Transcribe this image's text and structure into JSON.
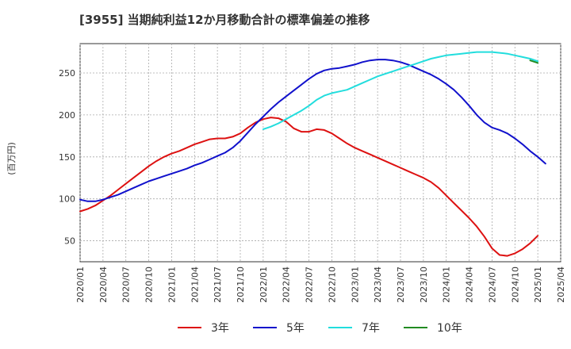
{
  "chart_data": {
    "type": "line",
    "title": "[3955]  当期純利益12か月移動合計の標準偏差の推移",
    "ylabel": "(百万円)",
    "xlabel": "",
    "ylim": [
      25,
      285
    ],
    "xlim": [
      "2020-01",
      "2025-04"
    ],
    "y_ticks": [
      50,
      100,
      150,
      200,
      250
    ],
    "x_ticks": [
      "2020/01",
      "2020/04",
      "2020/07",
      "2020/10",
      "2021/01",
      "2021/04",
      "2021/07",
      "2021/10",
      "2022/01",
      "2022/04",
      "2022/07",
      "2022/10",
      "2023/01",
      "2023/04",
      "2023/07",
      "2023/10",
      "2024/01",
      "2024/04",
      "2024/07",
      "2024/10",
      "2025/01",
      "2025/04"
    ],
    "grid": true,
    "legend_position": "bottom",
    "series": [
      {
        "name": "3年",
        "color": "#dd1111",
        "points": [
          [
            "2020-01",
            85
          ],
          [
            "2020-02",
            88
          ],
          [
            "2020-03",
            92
          ],
          [
            "2020-04",
            98
          ],
          [
            "2020-05",
            104
          ],
          [
            "2020-06",
            111
          ],
          [
            "2020-07",
            118
          ],
          [
            "2020-08",
            125
          ],
          [
            "2020-09",
            132
          ],
          [
            "2020-10",
            139
          ],
          [
            "2020-11",
            145
          ],
          [
            "2020-12",
            150
          ],
          [
            "2021-01",
            154
          ],
          [
            "2021-02",
            157
          ],
          [
            "2021-03",
            161
          ],
          [
            "2021-04",
            165
          ],
          [
            "2021-05",
            168
          ],
          [
            "2021-06",
            171
          ],
          [
            "2021-07",
            172
          ],
          [
            "2021-08",
            172
          ],
          [
            "2021-09",
            174
          ],
          [
            "2021-10",
            178
          ],
          [
            "2021-11",
            185
          ],
          [
            "2021-12",
            191
          ],
          [
            "2022-01",
            195
          ],
          [
            "2022-02",
            197
          ],
          [
            "2022-03",
            196
          ],
          [
            "2022-04",
            192
          ],
          [
            "2022-05",
            184
          ],
          [
            "2022-06",
            180
          ],
          [
            "2022-07",
            180
          ],
          [
            "2022-08",
            183
          ],
          [
            "2022-09",
            182
          ],
          [
            "2022-10",
            178
          ],
          [
            "2022-11",
            172
          ],
          [
            "2022-12",
            166
          ],
          [
            "2023-01",
            161
          ],
          [
            "2023-02",
            157
          ],
          [
            "2023-03",
            153
          ],
          [
            "2023-04",
            149
          ],
          [
            "2023-05",
            145
          ],
          [
            "2023-06",
            141
          ],
          [
            "2023-07",
            137
          ],
          [
            "2023-08",
            133
          ],
          [
            "2023-09",
            129
          ],
          [
            "2023-10",
            125
          ],
          [
            "2023-11",
            120
          ],
          [
            "2023-12",
            113
          ],
          [
            "2024-01",
            104
          ],
          [
            "2024-02",
            95
          ],
          [
            "2024-03",
            86
          ],
          [
            "2024-04",
            77
          ],
          [
            "2024-05",
            67
          ],
          [
            "2024-06",
            55
          ],
          [
            "2024-07",
            41
          ],
          [
            "2024-08",
            33
          ],
          [
            "2024-09",
            32
          ],
          [
            "2024-10",
            35
          ],
          [
            "2024-11",
            40
          ],
          [
            "2024-12",
            47
          ],
          [
            "2025-01",
            56
          ]
        ]
      },
      {
        "name": "5年",
        "color": "#1111cc",
        "points": [
          [
            "2020-01",
            99
          ],
          [
            "2020-02",
            97
          ],
          [
            "2020-03",
            97
          ],
          [
            "2020-04",
            99
          ],
          [
            "2020-05",
            102
          ],
          [
            "2020-06",
            105
          ],
          [
            "2020-07",
            109
          ],
          [
            "2020-08",
            113
          ],
          [
            "2020-09",
            117
          ],
          [
            "2020-10",
            121
          ],
          [
            "2020-11",
            124
          ],
          [
            "2020-12",
            127
          ],
          [
            "2021-01",
            130
          ],
          [
            "2021-02",
            133
          ],
          [
            "2021-03",
            136
          ],
          [
            "2021-04",
            140
          ],
          [
            "2021-05",
            143
          ],
          [
            "2021-06",
            147
          ],
          [
            "2021-07",
            151
          ],
          [
            "2021-08",
            155
          ],
          [
            "2021-09",
            161
          ],
          [
            "2021-10",
            169
          ],
          [
            "2021-11",
            179
          ],
          [
            "2021-12",
            189
          ],
          [
            "2022-01",
            198
          ],
          [
            "2022-02",
            207
          ],
          [
            "2022-03",
            215
          ],
          [
            "2022-04",
            222
          ],
          [
            "2022-05",
            229
          ],
          [
            "2022-06",
            236
          ],
          [
            "2022-07",
            243
          ],
          [
            "2022-08",
            249
          ],
          [
            "2022-09",
            253
          ],
          [
            "2022-10",
            255
          ],
          [
            "2022-11",
            256
          ],
          [
            "2022-12",
            258
          ],
          [
            "2023-01",
            260
          ],
          [
            "2023-02",
            263
          ],
          [
            "2023-03",
            265
          ],
          [
            "2023-04",
            266
          ],
          [
            "2023-05",
            266
          ],
          [
            "2023-06",
            265
          ],
          [
            "2023-07",
            263
          ],
          [
            "2023-08",
            260
          ],
          [
            "2023-09",
            256
          ],
          [
            "2023-10",
            252
          ],
          [
            "2023-11",
            248
          ],
          [
            "2023-12",
            243
          ],
          [
            "2024-01",
            237
          ],
          [
            "2024-02",
            230
          ],
          [
            "2024-03",
            221
          ],
          [
            "2024-04",
            211
          ],
          [
            "2024-05",
            200
          ],
          [
            "2024-06",
            191
          ],
          [
            "2024-07",
            185
          ],
          [
            "2024-08",
            182
          ],
          [
            "2024-09",
            178
          ],
          [
            "2024-10",
            172
          ],
          [
            "2024-11",
            165
          ],
          [
            "2024-12",
            157
          ],
          [
            "2025-01",
            150
          ],
          [
            "2025-02",
            142
          ]
        ]
      },
      {
        "name": "7年",
        "color": "#22dddd",
        "points": [
          [
            "2022-01",
            183
          ],
          [
            "2022-02",
            186
          ],
          [
            "2022-03",
            190
          ],
          [
            "2022-04",
            195
          ],
          [
            "2022-05",
            200
          ],
          [
            "2022-06",
            205
          ],
          [
            "2022-07",
            211
          ],
          [
            "2022-08",
            218
          ],
          [
            "2022-09",
            223
          ],
          [
            "2022-10",
            226
          ],
          [
            "2022-11",
            228
          ],
          [
            "2022-12",
            230
          ],
          [
            "2023-01",
            234
          ],
          [
            "2023-02",
            238
          ],
          [
            "2023-03",
            242
          ],
          [
            "2023-04",
            246
          ],
          [
            "2023-05",
            249
          ],
          [
            "2023-06",
            252
          ],
          [
            "2023-07",
            255
          ],
          [
            "2023-08",
            258
          ],
          [
            "2023-09",
            261
          ],
          [
            "2023-10",
            264
          ],
          [
            "2023-11",
            267
          ],
          [
            "2023-12",
            269
          ],
          [
            "2024-01",
            271
          ],
          [
            "2024-02",
            272
          ],
          [
            "2024-03",
            273
          ],
          [
            "2024-04",
            274
          ],
          [
            "2024-05",
            275
          ],
          [
            "2024-06",
            275
          ],
          [
            "2024-07",
            275
          ],
          [
            "2024-08",
            274
          ],
          [
            "2024-09",
            273
          ],
          [
            "2024-10",
            271
          ],
          [
            "2024-11",
            269
          ],
          [
            "2024-12",
            267
          ],
          [
            "2025-01",
            264
          ]
        ]
      },
      {
        "name": "10年",
        "color": "#228b22",
        "points": [
          [
            "2024-12",
            265
          ],
          [
            "2025-01",
            262
          ]
        ]
      }
    ]
  }
}
